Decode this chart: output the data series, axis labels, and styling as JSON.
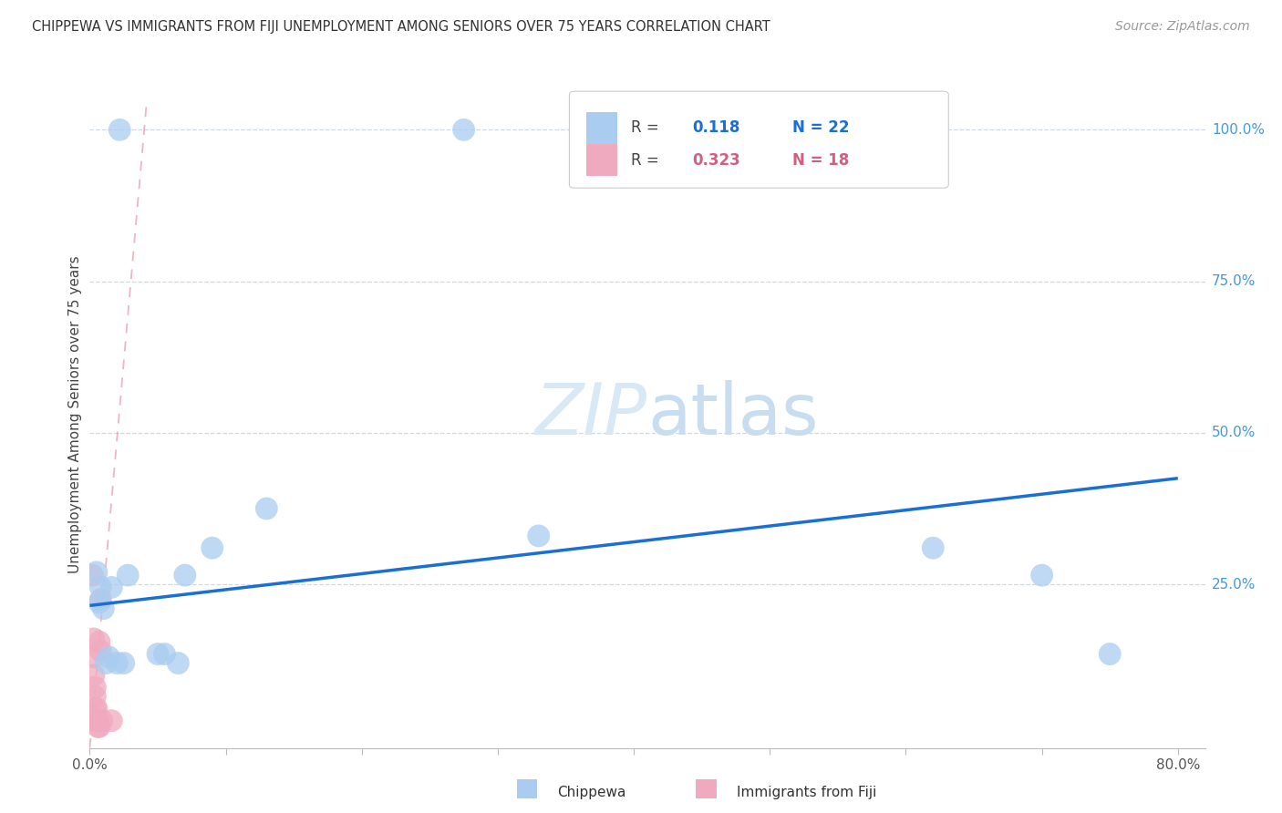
{
  "title": "CHIPPEWA VS IMMIGRANTS FROM FIJI UNEMPLOYMENT AMONG SENIORS OVER 75 YEARS CORRELATION CHART",
  "source": "Source: ZipAtlas.com",
  "ylabel": "Unemployment Among Seniors over 75 years",
  "xlim": [
    0.0,
    0.82
  ],
  "ylim": [
    -0.02,
    1.08
  ],
  "chippewa_color": "#aaccf0",
  "fiji_color": "#f0aac0",
  "trend_blue": "#1a6fd4",
  "trend_pink": "#e08898",
  "grid_color": "#d0d8e8",
  "chippewa_x": [
    0.022,
    0.005,
    0.007,
    0.008,
    0.01,
    0.012,
    0.014,
    0.016,
    0.02,
    0.025,
    0.028,
    0.05,
    0.055,
    0.065,
    0.07,
    0.09,
    0.13,
    0.33,
    0.275,
    0.62,
    0.7,
    0.75
  ],
  "chippewa_y": [
    1.0,
    0.27,
    0.22,
    0.245,
    0.21,
    0.12,
    0.13,
    0.245,
    0.12,
    0.12,
    0.265,
    0.135,
    0.135,
    0.12,
    0.265,
    0.31,
    0.375,
    0.33,
    1.0,
    0.31,
    0.265,
    0.135
  ],
  "fiji_x": [
    0.001,
    0.002,
    0.003,
    0.003,
    0.003,
    0.004,
    0.004,
    0.004,
    0.005,
    0.005,
    0.006,
    0.006,
    0.007,
    0.007,
    0.008,
    0.008,
    0.009,
    0.016
  ],
  "fiji_y": [
    0.035,
    0.265,
    0.16,
    0.13,
    0.1,
    0.08,
    0.065,
    0.045,
    0.045,
    0.025,
    0.025,
    0.015,
    0.015,
    0.155,
    0.225,
    0.14,
    0.025,
    0.025
  ],
  "blue_trend_x": [
    0.0,
    0.8
  ],
  "blue_trend_y": [
    0.215,
    0.425
  ],
  "pink_trend_x": [
    0.0,
    0.042
  ],
  "pink_trend_y": [
    -0.02,
    1.05
  ],
  "background_color": "#ffffff"
}
